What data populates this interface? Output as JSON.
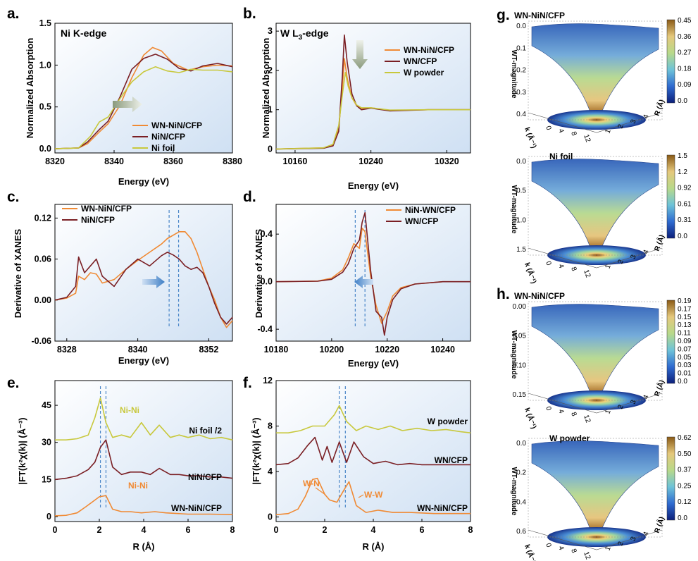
{
  "panels": {
    "a": {
      "label": "a.",
      "title": "Ni K-edge",
      "xlabel": "Energy (eV)",
      "ylabel": "Normalized Absorption",
      "xticks": [
        "8320",
        "8340",
        "8360",
        "8380"
      ],
      "yticks": [
        "0.0",
        "0.5",
        "1.0",
        "1.5"
      ],
      "legend": [
        "WN-NiN/CFP",
        "NiN/CFP",
        "Ni foil"
      ]
    },
    "b": {
      "label": "b.",
      "title": "W L",
      "title_sub": "3",
      "title_suffix": "-edge",
      "xlabel": "Energy (eV)",
      "ylabel": "Normalized Absorption",
      "xticks": [
        "10160",
        "10240",
        "10320"
      ],
      "yticks": [
        "0",
        "1",
        "2",
        "3"
      ],
      "legend": [
        "WN-NiN/CFP",
        "WN/CFP",
        "W powder"
      ]
    },
    "c": {
      "label": "c.",
      "xlabel": "Energy (eV)",
      "ylabel": "Derivative of XANES",
      "xticks": [
        "8328",
        "8340",
        "8352"
      ],
      "yticks": [
        "-0.06",
        "0.00",
        "0.06",
        "0.12"
      ],
      "legend": [
        "WN-NiN/CFP",
        "NiN/CFP"
      ]
    },
    "d": {
      "label": "d.",
      "xlabel": "Energy (eV)",
      "ylabel": "Derivative of XANES",
      "xticks": [
        "10180",
        "10200",
        "10220",
        "10240"
      ],
      "yticks": [
        "-0.4",
        "0.0",
        "0.4"
      ],
      "legend": [
        "NiN-WN/CFP",
        "WN/CFP"
      ]
    },
    "e": {
      "label": "e.",
      "xlabel": "R (Å)",
      "ylabel": "|FT(k²χ(k)| (Å⁻³)",
      "xticks": [
        "0",
        "2",
        "4",
        "6",
        "8"
      ],
      "yticks": [
        "0",
        "15",
        "30",
        "45"
      ],
      "curve_labels": [
        "Ni foil /2",
        "NiN/CFP",
        "WN-NiN/CFP"
      ],
      "annotations": [
        "Ni-Ni",
        "Ni-Ni"
      ]
    },
    "f": {
      "label": "f.",
      "xlabel": "R (Å)",
      "ylabel": "|FT(k²χ(k)| (Å⁻³)",
      "xticks": [
        "0",
        "2",
        "4",
        "6",
        "8"
      ],
      "yticks": [
        "0",
        "4",
        "8",
        "12"
      ],
      "curve_labels": [
        "W powder",
        "WN/CFP",
        "WN-NiN/CFP"
      ],
      "annotations": [
        "W-N",
        "W-W"
      ]
    },
    "g": {
      "label": "g.",
      "plots": [
        {
          "title": "WN-NiN/CFP",
          "zlabel": "WT-magnitude",
          "zticks": [
            "0.0",
            "0.1",
            "0.2",
            "0.3",
            "0.4"
          ],
          "cbar": [
            "0.45",
            "0.36",
            "0.27",
            "0.18",
            "0.09",
            "0.0"
          ]
        },
        {
          "title": "Ni foil",
          "zlabel": "WT-magnitude",
          "zticks": [
            "0.0",
            "0.5",
            "1.0",
            "1.5"
          ],
          "cbar": [
            "1.5",
            "1.2",
            "0.92",
            "0.61",
            "0.31",
            "0.0"
          ]
        }
      ]
    },
    "h": {
      "label": "h.",
      "plots": [
        {
          "title": "WN-NiN/CFP",
          "zlabel": "WT-magnitude",
          "zticks": [
            "0.00",
            "0.05",
            "0.10",
            "0.15"
          ],
          "cbar": [
            "0.19",
            "0.17",
            "0.15",
            "0.13",
            "0.11",
            "0.09",
            "0.07",
            "0.05",
            "0.03",
            "0.01",
            "0.0"
          ]
        },
        {
          "title": "W powder",
          "zlabel": "WT-magnitude",
          "zticks": [
            "0.0",
            "0.2",
            "0.4",
            "0.6"
          ],
          "cbar": [
            "0.62",
            "0.50",
            "0.37",
            "0.25",
            "0.12",
            "0.0"
          ]
        }
      ]
    },
    "wt_axes": {
      "k_label": "k (Å⁻¹)",
      "r_label": "R (Å)",
      "k_ticks": [
        "0",
        "4",
        "8",
        "12"
      ],
      "r_ticks": [
        "1",
        "2",
        "3",
        "4"
      ]
    }
  },
  "colors": {
    "orange": "#f08a34",
    "maroon": "#7a1f24",
    "olive": "#c8c83c",
    "dash_blue": "#4a86c8",
    "arrow_blue": "#3f7fc6"
  },
  "chart_data": [
    {
      "type": "line",
      "panel": "a",
      "title": "Ni K-edge",
      "xlabel": "Energy (eV)",
      "ylabel": "Normalized Absorption",
      "xlim": [
        8320,
        8380
      ],
      "ylim": [
        -0.05,
        1.5
      ],
      "series": [
        {
          "name": "WN-NiN/CFP",
          "color": "#f08a34",
          "x": [
            8320,
            8328,
            8331,
            8335,
            8338,
            8342,
            8346,
            8350,
            8353,
            8356,
            8360,
            8365,
            8370,
            8375,
            8380
          ],
          "y": [
            0,
            0.01,
            0.06,
            0.2,
            0.3,
            0.52,
            0.85,
            1.12,
            1.21,
            1.17,
            1.02,
            0.94,
            0.98,
            1.0,
            0.99
          ]
        },
        {
          "name": "NiN/CFP",
          "color": "#7a1f24",
          "x": [
            8320,
            8328,
            8331,
            8335,
            8338,
            8342,
            8346,
            8350,
            8354,
            8358,
            8362,
            8366,
            8370,
            8375,
            8380
          ],
          "y": [
            0,
            0.01,
            0.08,
            0.23,
            0.33,
            0.62,
            0.95,
            1.08,
            1.13,
            1.07,
            0.96,
            0.93,
            0.99,
            1.02,
            0.98
          ]
        },
        {
          "name": "Ni foil",
          "color": "#c8c83c",
          "x": [
            8320,
            8328,
            8332,
            8335,
            8338,
            8342,
            8346,
            8350,
            8354,
            8358,
            8362,
            8366,
            8370,
            8375,
            8380
          ],
          "y": [
            0,
            0.01,
            0.15,
            0.32,
            0.38,
            0.6,
            0.8,
            0.92,
            0.98,
            0.93,
            0.91,
            0.95,
            0.94,
            0.94,
            0.92
          ]
        }
      ]
    },
    {
      "type": "line",
      "panel": "b",
      "title": "W L3-edge",
      "xlabel": "Energy (eV)",
      "ylabel": "Normalized Absorption",
      "xlim": [
        10140,
        10345
      ],
      "ylim": [
        -0.1,
        3.2
      ],
      "series": [
        {
          "name": "WN-NiN/CFP",
          "color": "#f08a34",
          "x": [
            10140,
            10190,
            10200,
            10206,
            10210,
            10212,
            10215,
            10220,
            10225,
            10230,
            10240,
            10260,
            10300,
            10345
          ],
          "y": [
            0,
            0.03,
            0.1,
            0.5,
            1.6,
            2.3,
            1.8,
            1.3,
            1.1,
            1.02,
            1.05,
            0.98,
            1.0,
            1.0
          ]
        },
        {
          "name": "WN/CFP",
          "color": "#7a1f24",
          "x": [
            10140,
            10190,
            10200,
            10206,
            10210,
            10212,
            10215,
            10220,
            10225,
            10230,
            10240,
            10260,
            10300,
            10345
          ],
          "y": [
            0,
            0.02,
            0.08,
            0.45,
            1.9,
            2.9,
            2.2,
            1.4,
            1.1,
            1.0,
            1.04,
            0.97,
            1.0,
            1.0
          ]
        },
        {
          "name": "W powder",
          "color": "#c8c83c",
          "x": [
            10140,
            10190,
            10200,
            10206,
            10210,
            10213,
            10216,
            10220,
            10225,
            10230,
            10240,
            10260,
            10300,
            10345
          ],
          "y": [
            0,
            0.03,
            0.12,
            0.6,
            1.4,
            1.95,
            1.6,
            1.3,
            1.12,
            1.05,
            1.05,
            0.99,
            1.0,
            1.0
          ]
        }
      ]
    },
    {
      "type": "line",
      "panel": "c",
      "xlabel": "Energy (eV)",
      "ylabel": "Derivative of XANES",
      "xlim": [
        8326,
        8356
      ],
      "ylim": [
        -0.06,
        0.14
      ],
      "vlines": [
        8345.3,
        8346.9
      ],
      "series": [
        {
          "name": "WN-NiN/CFP",
          "color": "#f08a34",
          "x": [
            8326,
            8328,
            8329.5,
            8330,
            8331,
            8332,
            8333,
            8334,
            8336,
            8338,
            8340,
            8342,
            8344,
            8345,
            8347,
            8348,
            8349,
            8350,
            8351,
            8352,
            8353,
            8354,
            8355,
            8356
          ],
          "y": [
            0,
            0.003,
            0.01,
            0.035,
            0.03,
            0.04,
            0.038,
            0.025,
            0.03,
            0.045,
            0.058,
            0.07,
            0.082,
            0.09,
            0.1,
            0.1,
            0.09,
            0.07,
            0.045,
            0.02,
            0.0,
            -0.025,
            -0.04,
            -0.03
          ]
        },
        {
          "name": "NiN/CFP",
          "color": "#7a1f24",
          "x": [
            8326,
            8328,
            8329.5,
            8330,
            8331,
            8332,
            8333,
            8334,
            8336,
            8338,
            8340,
            8342,
            8344,
            8345,
            8346,
            8347,
            8348,
            8349,
            8350,
            8351,
            8352,
            8353,
            8354,
            8355,
            8356
          ],
          "y": [
            0,
            0.004,
            0.02,
            0.063,
            0.04,
            0.05,
            0.06,
            0.035,
            0.02,
            0.045,
            0.06,
            0.05,
            0.065,
            0.07,
            0.066,
            0.06,
            0.05,
            0.045,
            0.048,
            0.04,
            0.02,
            -0.005,
            -0.025,
            -0.035,
            -0.025
          ]
        }
      ]
    },
    {
      "type": "line",
      "panel": "d",
      "xlabel": "Energy (eV)",
      "ylabel": "Derivative of XANES",
      "xlim": [
        10180,
        10250
      ],
      "ylim": [
        -0.5,
        0.65
      ],
      "vlines": [
        10208.5,
        10212
      ],
      "series": [
        {
          "name": "NiN-WN/CFP",
          "color": "#f08a34",
          "x": [
            10180,
            10195,
            10200,
            10204,
            10206,
            10208,
            10210,
            10211,
            10212,
            10214,
            10216,
            10218,
            10220,
            10222,
            10225,
            10230,
            10240,
            10250
          ],
          "y": [
            0,
            0.005,
            0.03,
            0.1,
            0.2,
            0.32,
            0.28,
            0.45,
            0.42,
            0.05,
            -0.2,
            -0.35,
            -0.25,
            -0.12,
            -0.05,
            -0.02,
            0.0,
            0.0
          ]
        },
        {
          "name": "WN/CFP",
          "color": "#7a1f24",
          "x": [
            10180,
            10195,
            10200,
            10204,
            10206,
            10208,
            10210,
            10211,
            10212,
            10214,
            10216,
            10218,
            10219,
            10220,
            10222,
            10225,
            10230,
            10240,
            10250
          ],
          "y": [
            0,
            0.004,
            0.02,
            0.08,
            0.15,
            0.28,
            0.35,
            0.5,
            0.58,
            0.1,
            -0.25,
            -0.3,
            -0.45,
            -0.3,
            -0.15,
            -0.06,
            -0.02,
            0.0,
            0.0
          ]
        }
      ]
    },
    {
      "type": "line",
      "panel": "e",
      "xlabel": "R (Å)",
      "ylabel": "|FT(k²χ(k)| (Å⁻³)",
      "xlim": [
        0,
        8
      ],
      "ylim": [
        -2,
        55
      ],
      "vlines": [
        2.05,
        2.3
      ],
      "series": [
        {
          "name": "Ni foil /2",
          "color": "#c8c83c",
          "x": [
            0,
            0.5,
            1.0,
            1.5,
            1.8,
            2.05,
            2.3,
            2.6,
            3.0,
            3.4,
            3.9,
            4.3,
            4.7,
            5.2,
            5.6,
            6.0,
            6.5,
            7.0,
            7.5,
            8.0
          ],
          "y": [
            31,
            31,
            31.5,
            33,
            40,
            48,
            38,
            32,
            33,
            32,
            38,
            33,
            37,
            32,
            33,
            32,
            33,
            31.5,
            32,
            31
          ]
        },
        {
          "name": "NiN/CFP",
          "color": "#7a1f24",
          "x": [
            0,
            0.5,
            1.0,
            1.5,
            1.8,
            2.05,
            2.3,
            2.6,
            3.0,
            3.4,
            3.9,
            4.3,
            4.7,
            5.2,
            5.6,
            6.0,
            6.5,
            7.0,
            7.5,
            8.0
          ],
          "y": [
            15,
            15.5,
            16.5,
            19,
            22,
            28,
            31,
            20,
            17,
            18,
            18,
            17,
            19.5,
            17,
            17,
            16.5,
            16.5,
            16,
            16,
            15.5
          ]
        },
        {
          "name": "WN-NiN/CFP",
          "color": "#f08a34",
          "x": [
            0,
            0.5,
            1.0,
            1.4,
            1.7,
            2.0,
            2.3,
            2.6,
            3.0,
            3.4,
            3.9,
            4.5,
            5.0,
            6.0,
            7.0,
            8.0
          ],
          "y": [
            0.3,
            0.5,
            1.5,
            4,
            6,
            8,
            8.5,
            3,
            2,
            2,
            1.5,
            2,
            1.5,
            1,
            1,
            0.8
          ]
        }
      ]
    },
    {
      "type": "line",
      "panel": "f",
      "xlabel": "R (Å)",
      "ylabel": "|FT(k²χ(k)| (Å⁻³)",
      "xlim": [
        0,
        8
      ],
      "ylim": [
        -0.4,
        12
      ],
      "vlines": [
        2.6,
        2.85
      ],
      "series": [
        {
          "name": "W powder",
          "color": "#c8c83c",
          "x": [
            0,
            0.5,
            1.0,
            1.5,
            2.0,
            2.4,
            2.6,
            2.9,
            3.3,
            3.7,
            4.2,
            4.7,
            5.2,
            5.8,
            6.4,
            7.0,
            7.6,
            8.0
          ],
          "y": [
            7.4,
            7.4,
            7.6,
            8.0,
            8.0,
            9.0,
            9.8,
            8.4,
            7.6,
            8.0,
            7.7,
            8.0,
            7.6,
            7.8,
            7.6,
            7.7,
            7.5,
            7.4
          ]
        },
        {
          "name": "WN/CFP",
          "color": "#7a1f24",
          "x": [
            0,
            0.5,
            0.9,
            1.3,
            1.6,
            1.9,
            2.1,
            2.3,
            2.6,
            2.9,
            3.2,
            3.6,
            4.0,
            4.5,
            5.0,
            5.5,
            6.0,
            7.0,
            8.0
          ],
          "y": [
            4.6,
            4.7,
            5.2,
            6.3,
            7.0,
            5.0,
            6.2,
            4.8,
            6.6,
            4.8,
            6.6,
            5.3,
            4.7,
            4.9,
            4.6,
            4.7,
            4.6,
            4.6,
            4.6
          ]
        },
        {
          "name": "WN-NiN/CFP",
          "color": "#f08a34",
          "x": [
            0,
            0.5,
            0.9,
            1.2,
            1.5,
            1.7,
            2.0,
            2.2,
            2.5,
            2.8,
            3.0,
            3.3,
            3.7,
            4.2,
            4.8,
            5.5,
            6.5,
            8.0
          ],
          "y": [
            0.2,
            0.3,
            0.7,
            1.8,
            3.3,
            3.4,
            2.0,
            1.5,
            1.3,
            2.4,
            3.1,
            1.0,
            0.4,
            0.6,
            0.4,
            0.4,
            0.3,
            0.3
          ]
        }
      ]
    }
  ]
}
